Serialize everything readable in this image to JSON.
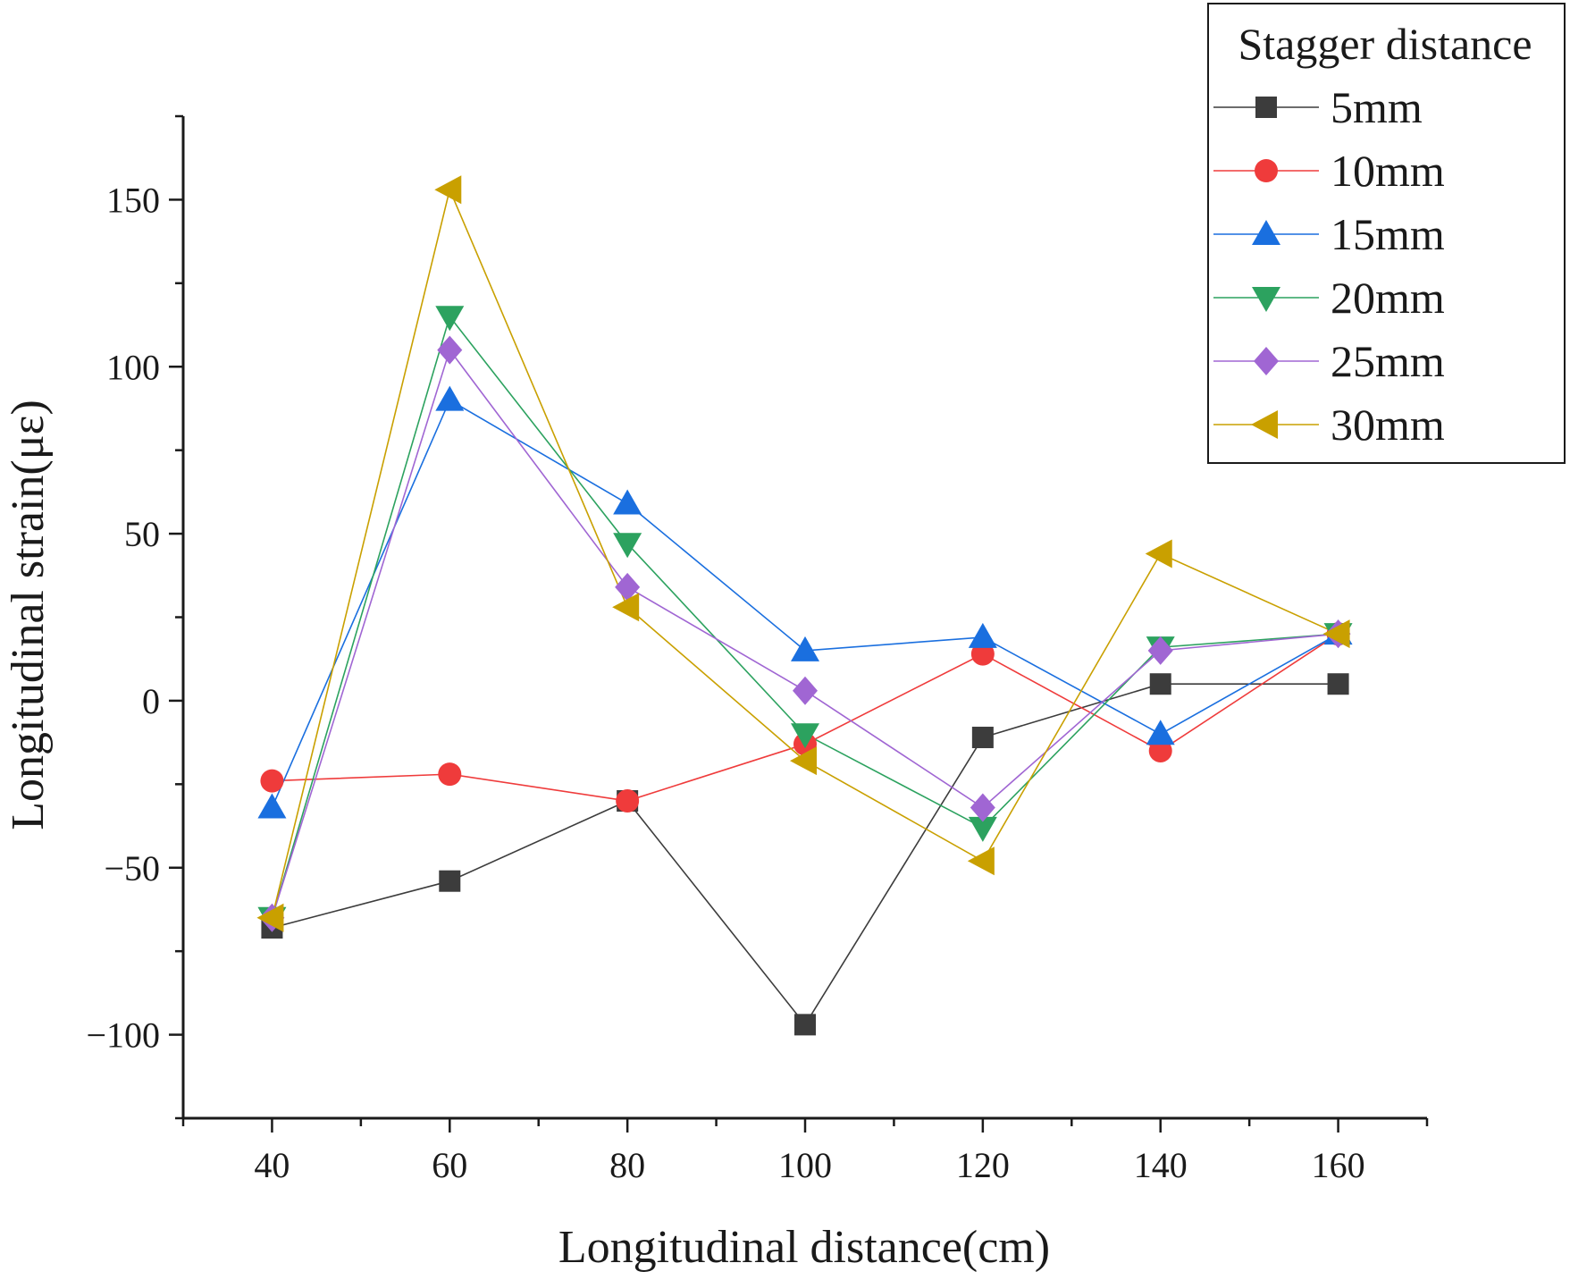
{
  "chart_data": {
    "type": "line",
    "title": "",
    "xlabel": "Longitudinal distance(cm)",
    "ylabel": "Longitudinal strain(με)",
    "x": [
      40,
      60,
      80,
      100,
      120,
      140,
      160
    ],
    "xlim": [
      30,
      170
    ],
    "ylim": [
      -125,
      175
    ],
    "xticks": [
      40,
      60,
      80,
      100,
      120,
      140,
      160
    ],
    "yticks": [
      -100,
      -50,
      0,
      50,
      100,
      150
    ],
    "xtick_labels": [
      "40",
      "60",
      "80",
      "100",
      "120",
      "140",
      "160"
    ],
    "ytick_labels": [
      "−100",
      "−50",
      "0",
      "50",
      "100",
      "150"
    ],
    "grid": false,
    "legend": {
      "title": "Stagger distance",
      "position": "top-right"
    },
    "series": [
      {
        "name": "5mm",
        "color": "#3c3c3c",
        "marker": "square",
        "values": [
          -68,
          -54,
          -30,
          -97,
          -11,
          5,
          5
        ]
      },
      {
        "name": "10mm",
        "color": "#ef3b3b",
        "marker": "circle",
        "values": [
          -24,
          -22,
          -30,
          -13,
          14,
          -15,
          20
        ]
      },
      {
        "name": "15mm",
        "color": "#1a6fdf",
        "marker": "triangle-up",
        "values": [
          -32,
          90,
          59,
          15,
          19,
          -10,
          20
        ]
      },
      {
        "name": "20mm",
        "color": "#2ca25f",
        "marker": "triangle-down",
        "values": [
          -65,
          115,
          47,
          -10,
          -38,
          16,
          20
        ]
      },
      {
        "name": "25mm",
        "color": "#a066d3",
        "marker": "diamond",
        "values": [
          -65,
          105,
          34,
          3,
          -32,
          15,
          20
        ]
      },
      {
        "name": "30mm",
        "color": "#c9a000",
        "marker": "triangle-left",
        "values": [
          -65,
          153,
          28,
          -18,
          -48,
          44,
          20
        ]
      }
    ]
  }
}
